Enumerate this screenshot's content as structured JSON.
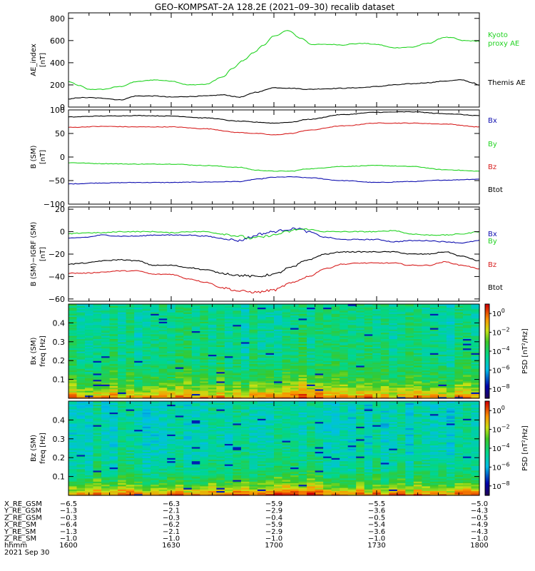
{
  "title": "GEO–KOMPSAT–2A 128.2E (2021–09–30) recalib dataset",
  "colors": {
    "black": "#000000",
    "red": "#d71f1f",
    "green": "#22d322",
    "blue": "#1010b0"
  },
  "chart_data": [
    {
      "type": "line",
      "ylabel": "AE_index",
      "yunit": "[nT]",
      "ylim": [
        0,
        850
      ],
      "yticks": [
        0,
        200,
        400,
        600,
        800
      ],
      "ytick_labels": [
        "0",
        "200",
        "400",
        "600",
        "800"
      ],
      "xlim": [
        960,
        1080
      ],
      "series": [
        {
          "name": "Kyoto proxy AE",
          "legend_lines": [
            "Kyoto",
            "proxy AE"
          ],
          "color": "#22d322",
          "x": [
            960,
            963,
            966,
            970,
            975,
            980,
            985,
            990,
            995,
            1000,
            1005,
            1008,
            1011,
            1014,
            1017,
            1020,
            1024,
            1028,
            1031,
            1034,
            1037,
            1040,
            1043,
            1046,
            1050,
            1055,
            1060,
            1065,
            1070,
            1072,
            1075,
            1080
          ],
          "y": [
            230,
            195,
            160,
            160,
            185,
            230,
            245,
            235,
            200,
            205,
            270,
            350,
            420,
            490,
            560,
            640,
            690,
            620,
            565,
            565,
            565,
            560,
            570,
            575,
            565,
            535,
            540,
            575,
            630,
            625,
            600,
            595
          ]
        },
        {
          "name": "Themis AE",
          "legend_lines": [
            "Themis AE"
          ],
          "color": "#000000",
          "x": [
            960,
            963,
            966,
            970,
            975,
            980,
            985,
            990,
            995,
            1000,
            1005,
            1010,
            1015,
            1020,
            1025,
            1030,
            1035,
            1040,
            1045,
            1050,
            1055,
            1060,
            1065,
            1070,
            1075,
            1078,
            1080
          ],
          "y": [
            70,
            85,
            85,
            80,
            65,
            100,
            100,
            90,
            95,
            100,
            110,
            90,
            135,
            175,
            170,
            160,
            165,
            170,
            175,
            185,
            200,
            210,
            220,
            235,
            245,
            220,
            195
          ]
        }
      ]
    },
    {
      "type": "line",
      "ylabel": "B (SM)",
      "yunit": "[nT]",
      "ylim": [
        -100,
        100
      ],
      "yticks": [
        -100,
        -50,
        0,
        50,
        100
      ],
      "ytick_labels": [
        "−100",
        "−50",
        "0",
        "50",
        "100"
      ],
      "xlim": [
        960,
        1080
      ],
      "series": [
        {
          "name": "Bx",
          "color": "#1010b0",
          "x": [
            960,
            970,
            980,
            990,
            1000,
            1010,
            1015,
            1020,
            1025,
            1030,
            1040,
            1050,
            1060,
            1070,
            1080
          ],
          "y": [
            -57,
            -55,
            -54,
            -54,
            -53,
            -52,
            -47,
            -43,
            -42,
            -44,
            -50,
            -54,
            -52,
            -49,
            -47
          ]
        },
        {
          "name": "By",
          "color": "#22d322",
          "x": [
            960,
            970,
            980,
            990,
            1000,
            1010,
            1015,
            1020,
            1025,
            1030,
            1040,
            1050,
            1060,
            1070,
            1080
          ],
          "y": [
            -12,
            -14,
            -15,
            -15,
            -18,
            -22,
            -28,
            -30,
            -30,
            -25,
            -20,
            -18,
            -20,
            -27,
            -30
          ]
        },
        {
          "name": "Bz",
          "color": "#d71f1f",
          "x": [
            960,
            970,
            980,
            990,
            1000,
            1010,
            1015,
            1020,
            1025,
            1030,
            1040,
            1050,
            1060,
            1070,
            1080
          ],
          "y": [
            63,
            65,
            64,
            64,
            60,
            52,
            50,
            47,
            50,
            57,
            66,
            72,
            72,
            70,
            64
          ]
        },
        {
          "name": "Btot",
          "color": "#000000",
          "x": [
            960,
            970,
            980,
            990,
            1000,
            1010,
            1015,
            1020,
            1025,
            1030,
            1040,
            1050,
            1060,
            1070,
            1080
          ],
          "y": [
            85,
            87,
            88,
            87,
            83,
            76,
            74,
            72,
            74,
            80,
            90,
            95,
            96,
            92,
            88
          ]
        }
      ]
    },
    {
      "type": "line",
      "ylabel": "B (SM)−IGRF (SM)",
      "yunit": "[nT]",
      "ylim": [
        -62,
        22
      ],
      "yticks": [
        -60,
        -40,
        -20,
        0,
        20
      ],
      "ytick_labels": [
        "−60",
        "−40",
        "−20",
        "0",
        "20"
      ],
      "xlim": [
        960,
        1080
      ],
      "series": [
        {
          "name": "Bx",
          "color": "#1010b0",
          "x": [
            960,
            965,
            970,
            975,
            980,
            985,
            990,
            995,
            1000,
            1005,
            1010,
            1013,
            1016,
            1020,
            1024,
            1027,
            1030,
            1035,
            1040,
            1045,
            1050,
            1055,
            1060,
            1065,
            1070,
            1075,
            1080
          ],
          "y": [
            -6,
            -5,
            -3,
            -4,
            -4,
            -3,
            -3,
            -3,
            -4,
            -6,
            -8,
            -5,
            -2,
            0,
            2,
            3,
            0,
            -5,
            -7,
            -7,
            -7,
            -9,
            -8,
            -8,
            -9,
            -10,
            -8
          ]
        },
        {
          "name": "By",
          "color": "#22d322",
          "x": [
            960,
            965,
            970,
            975,
            980,
            985,
            990,
            995,
            1000,
            1005,
            1010,
            1013,
            1016,
            1020,
            1024,
            1027,
            1030,
            1035,
            1040,
            1045,
            1050,
            1055,
            1060,
            1065,
            1070,
            1075,
            1080
          ],
          "y": [
            -2,
            -1,
            -1,
            0,
            0,
            0,
            -1,
            0,
            0,
            -2,
            -4,
            -6,
            -5,
            -3,
            0,
            2,
            2,
            0,
            0,
            0,
            0,
            1,
            -2,
            -3,
            -3,
            -2,
            0
          ]
        },
        {
          "name": "Bz",
          "color": "#d71f1f",
          "x": [
            960,
            965,
            970,
            975,
            980,
            985,
            990,
            995,
            1000,
            1005,
            1010,
            1015,
            1020,
            1025,
            1030,
            1035,
            1040,
            1045,
            1050,
            1055,
            1060,
            1065,
            1070,
            1075,
            1080
          ],
          "y": [
            -37,
            -37,
            -36,
            -35,
            -35,
            -38,
            -38,
            -42,
            -45,
            -50,
            -53,
            -54,
            -52,
            -46,
            -40,
            -33,
            -29,
            -28,
            -28,
            -28,
            -30,
            -30,
            -27,
            -30,
            -33
          ]
        },
        {
          "name": "Btot",
          "color": "#000000",
          "x": [
            960,
            965,
            970,
            975,
            980,
            985,
            990,
            995,
            1000,
            1005,
            1010,
            1015,
            1020,
            1025,
            1030,
            1035,
            1040,
            1045,
            1050,
            1055,
            1060,
            1065,
            1070,
            1075,
            1080
          ],
          "y": [
            -29,
            -28,
            -26,
            -25,
            -26,
            -30,
            -30,
            -32,
            -34,
            -37,
            -39,
            -40,
            -38,
            -32,
            -25,
            -20,
            -18,
            -18,
            -18,
            -18,
            -20,
            -20,
            -18,
            -22,
            -26
          ]
        }
      ]
    },
    {
      "type": "heatmap",
      "ylabel": "Bx (SM)",
      "yunit": "freq [Hz]",
      "ylim": [
        0,
        0.5
      ],
      "yticks": [
        0.1,
        0.2,
        0.3,
        0.4
      ],
      "ytick_labels": [
        "0.1",
        "0.2",
        "0.3",
        "0.4"
      ],
      "xlim": [
        960,
        1080
      ],
      "zlabel": "PSD [nT²/Hz]",
      "z_scale": "log",
      "zlim": [
        1e-09,
        10
      ],
      "zticks": [
        1e-08,
        1e-06,
        0.0001,
        0.01,
        1
      ],
      "ztick_labels": [
        [
          "10",
          "−8"
        ],
        [
          "10",
          "−6"
        ],
        [
          "10",
          "−4"
        ],
        [
          "10",
          "−2"
        ],
        [
          "10",
          "0"
        ]
      ]
    },
    {
      "type": "heatmap",
      "ylabel": "Bz (SM)",
      "yunit": "freq [Hz]",
      "ylim": [
        0,
        0.5
      ],
      "yticks": [
        0.1,
        0.2,
        0.3,
        0.4
      ],
      "ytick_labels": [
        "0.1",
        "0.2",
        "0.3",
        "0.4"
      ],
      "xlim": [
        960,
        1080
      ],
      "zlabel": "PSD [nT²/Hz]",
      "z_scale": "log",
      "zlim": [
        1e-09,
        10
      ],
      "zticks": [
        1e-08,
        1e-06,
        0.0001,
        0.01,
        1
      ],
      "ztick_labels": [
        [
          "10",
          "−8"
        ],
        [
          "10",
          "−6"
        ],
        [
          "10",
          "−4"
        ],
        [
          "10",
          "−2"
        ],
        [
          "10",
          "0"
        ]
      ]
    }
  ],
  "x_axis": {
    "ticks_minutes": [
      960,
      990,
      1020,
      1050,
      1080
    ],
    "rows": [
      {
        "label": "X_RE_GSM",
        "values": [
          "−6.5",
          "−6.3",
          "−5.9",
          "−5.5",
          "−5.0"
        ]
      },
      {
        "label": "Y_RE_GSM",
        "values": [
          "−1.3",
          "−2.1",
          "−2.9",
          "−3.6",
          "−4.3"
        ]
      },
      {
        "label": "Z_RE_GSM",
        "values": [
          "−0.3",
          "−0.3",
          "−0.4",
          "−0.5",
          "−0.5"
        ]
      },
      {
        "label": "X_RE_SM",
        "values": [
          "−6.4",
          "−6.2",
          "−5.9",
          "−5.4",
          "−4.9"
        ]
      },
      {
        "label": "Y_RE_SM",
        "values": [
          "−1.3",
          "−2.1",
          "−2.9",
          "−3.6",
          "−4.3"
        ]
      },
      {
        "label": "Z_RE_SM",
        "values": [
          "−1.0",
          "−1.0",
          "−1.0",
          "−1.0",
          "−1.0"
        ]
      },
      {
        "label": "hhmm",
        "values": [
          "1600",
          "1630",
          "1700",
          "1730",
          "1800"
        ]
      }
    ],
    "date": "2021 Sep 30"
  }
}
